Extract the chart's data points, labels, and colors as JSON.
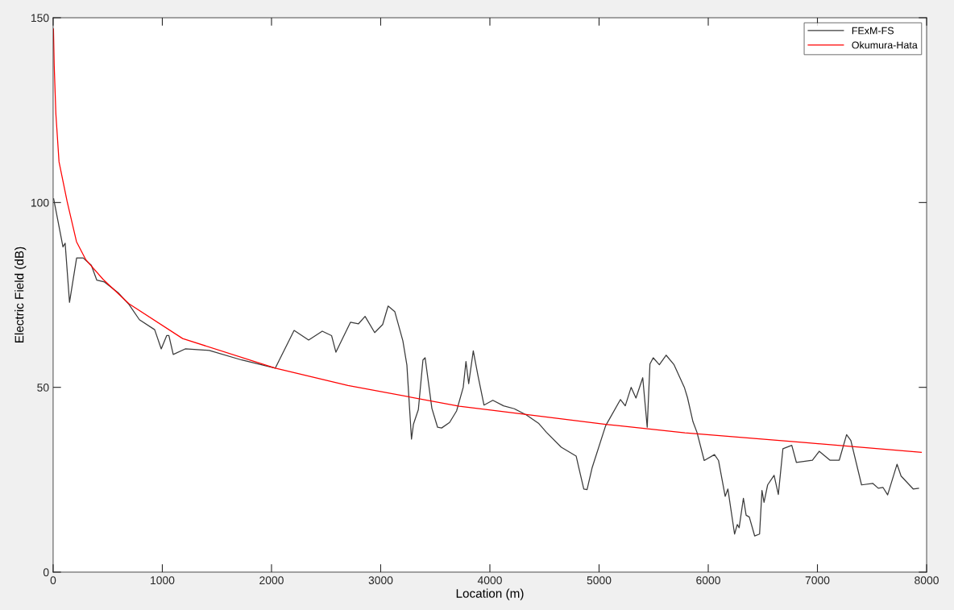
{
  "chart_data": {
    "type": "line",
    "xlabel": "Location (m)",
    "ylabel": "Electric Field (dB)",
    "xlim": [
      0,
      8000
    ],
    "xticks": [
      0,
      1000,
      2000,
      3000,
      4000,
      5000,
      6000,
      7000,
      8000
    ],
    "ylim": [
      0,
      150
    ],
    "yticks": [
      0,
      50,
      100,
      150
    ],
    "grid": false,
    "legend": "top right",
    "line_style": "solid",
    "marker": "none",
    "series": [
      {
        "name": "FExM-FS",
        "color": "#3a3a3a",
        "x": [
          5,
          90,
          110,
          150,
          215,
          275,
          350,
          400,
          470,
          595,
          695,
          790,
          930,
          990,
          1040,
          1060,
          1100,
          1210,
          1430,
          1727,
          2035,
          2207,
          2340,
          2465,
          2550,
          2590,
          2723,
          2797,
          2857,
          2945,
          3018,
          3068,
          3129,
          3203,
          3240,
          3282,
          3300,
          3345,
          3387,
          3407,
          3469,
          3521,
          3558,
          3631,
          3695,
          3756,
          3781,
          3806,
          3848,
          3892,
          3946,
          4027,
          4125,
          4224,
          4335,
          4445,
          4519,
          4654,
          4790,
          4814,
          4860,
          4890,
          4937,
          5060,
          5196,
          5240,
          5294,
          5338,
          5400,
          5441,
          5466,
          5496,
          5552,
          5614,
          5687,
          5781,
          5810,
          5860,
          5897,
          5963,
          6057,
          6094,
          6155,
          6180,
          6241,
          6266,
          6283,
          6322,
          6347,
          6376,
          6425,
          6470,
          6492,
          6511,
          6544,
          6603,
          6642,
          6684,
          6765,
          6807,
          6954,
          7016,
          7114,
          7200,
          7267,
          7306,
          7404,
          7508,
          7557,
          7601,
          7643,
          7729,
          7766,
          7877,
          7926
        ],
        "values": [
          101,
          88,
          89,
          73,
          85,
          85,
          83,
          79,
          78.5,
          75.6,
          72.4,
          68.3,
          65.6,
          60.4,
          64,
          64,
          58.9,
          60.4,
          60,
          57.4,
          55.2,
          65.4,
          62.8,
          65.2,
          64,
          59.5,
          67.6,
          67.2,
          69.2,
          64.8,
          67,
          72,
          70.5,
          62.6,
          56,
          36,
          40,
          44,
          57.4,
          58,
          44.3,
          39.2,
          39,
          40.5,
          43.6,
          50,
          57,
          51,
          59.9,
          53,
          45.2,
          46.5,
          45,
          44.2,
          42.5,
          40.3,
          37.8,
          33.8,
          31.4,
          28.3,
          22.5,
          22.3,
          28.3,
          39.6,
          46.7,
          45,
          50,
          47.1,
          52.6,
          39.2,
          56.3,
          58,
          56.1,
          58.7,
          56.1,
          50,
          47.2,
          40.7,
          37.8,
          30.2,
          31.8,
          30.2,
          20.5,
          22.5,
          10.3,
          12.9,
          12,
          20,
          15.4,
          14.9,
          9.8,
          10.3,
          22.1,
          18.9,
          23.6,
          26.2,
          21,
          33.4,
          34.3,
          29.7,
          30.3,
          32.7,
          30.3,
          30.3,
          37.2,
          35.6,
          23.6,
          24,
          22.7,
          22.9,
          20.9,
          29.2,
          26,
          22.5,
          22.7
        ]
      },
      {
        "name": "Okumura-Hata",
        "color": "#ff0000",
        "x": [
          3,
          10,
          25,
          54,
          128,
          214,
          300,
          458,
          695,
          1186,
          2035,
          2700,
          3720,
          5060,
          5786,
          6900,
          7951
        ],
        "values": [
          147,
          137,
          124,
          111,
          100.3,
          89.4,
          84.5,
          79.2,
          72.6,
          63.2,
          55.2,
          50.5,
          44.9,
          40,
          37.7,
          35,
          32.4
        ]
      }
    ]
  }
}
